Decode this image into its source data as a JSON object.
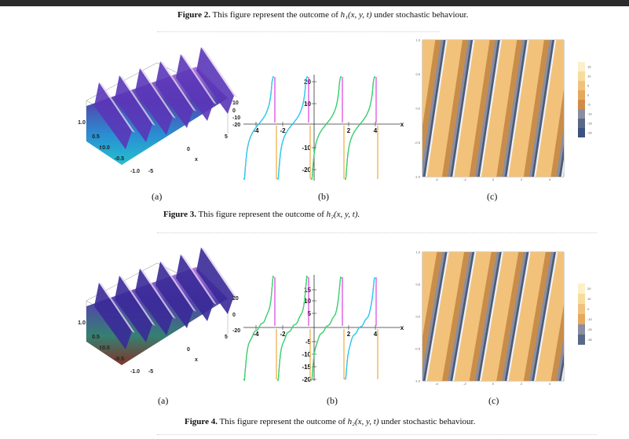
{
  "figure2": {
    "label": "Figure 2.",
    "text_pre": "This figure represent the outcome of ",
    "math": "h₁(x, y, t)",
    "text_post": " under stochastic behaviour."
  },
  "figure3": {
    "label": "Figure 3.",
    "text_pre": "This figure represent the outcome of ",
    "math": "h₂(x, y, t).",
    "text_post": ""
  },
  "figure4": {
    "label": "Figure 4.",
    "text_pre": "This figure represent the outcome of ",
    "math": "h₂(x, y, t)",
    "text_post": " under stochastic behaviour."
  },
  "sublabels": {
    "a": "(a)",
    "b": "(b)",
    "c": "(c)"
  },
  "row1": {
    "surface": {
      "t_ticks": [
        "1.0",
        "0.5",
        "0.0",
        "-0.5",
        "-1.0"
      ],
      "x_ticks": [
        "-5",
        "0",
        "5"
      ],
      "z_ticks": [
        "10",
        "0",
        "-10",
        "-20"
      ],
      "x_label": "x",
      "t_label": "t"
    },
    "plot2d": {
      "x_ticks": [
        "-4",
        "-2",
        "2",
        "4"
      ],
      "y_ticks": [
        "20",
        "10",
        "-10",
        "-20"
      ],
      "x_label": "x"
    },
    "contour": {
      "y_ticks": [
        "1.0",
        "0.5",
        "0.0",
        "-0.5",
        "-1.0"
      ],
      "x_ticks": [
        "-4",
        "-2",
        "0",
        "2",
        "4"
      ],
      "legend": [
        "15",
        "10",
        "5",
        "0",
        "-5",
        "-10",
        "-15",
        "-20"
      ]
    }
  },
  "row2": {
    "surface": {
      "t_ticks": [
        "1.0",
        "0.5",
        "0.0",
        "-0.5",
        "-1.0"
      ],
      "x_ticks": [
        "-5",
        "0",
        "5"
      ],
      "z_ticks": [
        "20",
        "0",
        "-20"
      ],
      "x_label": "x",
      "t_label": "t"
    },
    "plot2d": {
      "x_ticks": [
        "-4",
        "-2",
        "2",
        "4"
      ],
      "y_ticks": [
        "15",
        "10",
        "5",
        "-5",
        "-10",
        "-15",
        "-20"
      ],
      "x_label": "x"
    },
    "contour": {
      "y_ticks": [
        "1.0",
        "0.5",
        "0.0",
        "-0.5",
        "-1.0"
      ],
      "x_ticks": [
        "-4",
        "-2",
        "0",
        "2",
        "4"
      ],
      "legend": [
        "20",
        "10",
        "0",
        "-10",
        "-20",
        "-30"
      ]
    }
  },
  "colors": {
    "contour_light": "#f2c27a",
    "contour_mid": "#e0a458",
    "contour_dark": "#c98d4a",
    "contour_edge": "#4a5b7a",
    "curve_magenta": "#d419d9",
    "curve_blue": "#2a2be0",
    "curve_cyan": "#24d6e8",
    "curve_green": "#36e05a",
    "curve_orange": "#e89a1a",
    "curve_yellow": "#d9d91c"
  }
}
